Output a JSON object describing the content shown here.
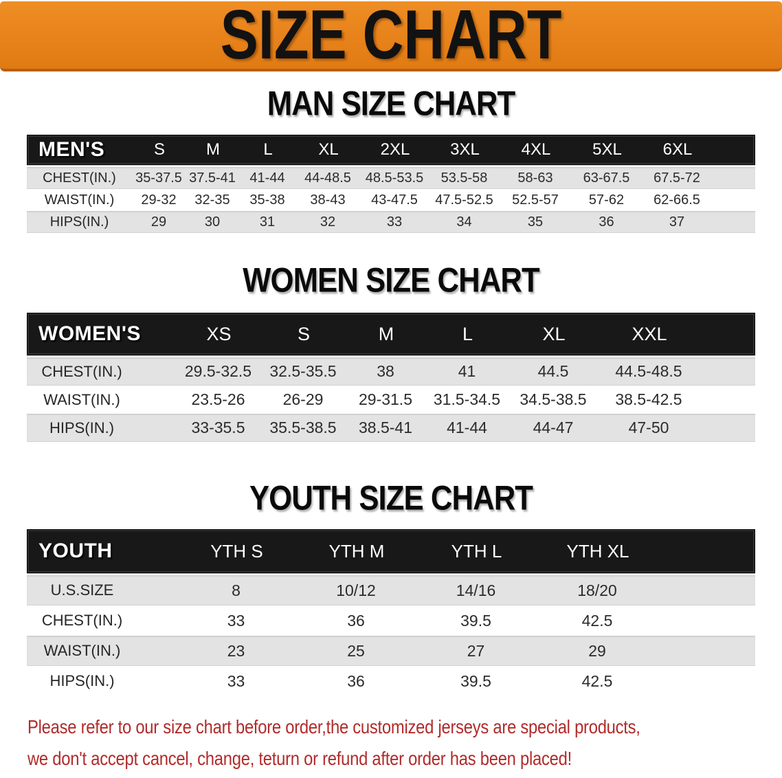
{
  "banner": {
    "title": "SIZE CHART",
    "background_color": "#E8821A",
    "text_color": "#121212"
  },
  "sections": [
    {
      "title": "MAN SIZE CHART",
      "group_label": "MEN'S",
      "columns": [
        "S",
        "M",
        "L",
        "XL",
        "2XL",
        "3XL",
        "4XL",
        "5XL",
        "6XL"
      ],
      "rows": [
        {
          "label": "CHEST(IN.)",
          "values": [
            "35-37.5",
            "37.5-41",
            "41-44",
            "44-48.5",
            "48.5-53.5",
            "53.5-58",
            "58-63",
            "63-67.5",
            "67.5-72"
          ]
        },
        {
          "label": "WAIST(IN.)",
          "values": [
            "29-32",
            "32-35",
            "35-38",
            "38-43",
            "43-47.5",
            "47.5-52.5",
            "52.5-57",
            "57-62",
            "62-66.5"
          ]
        },
        {
          "label": "HIPS(IN.)",
          "values": [
            "29",
            "30",
            "31",
            "32",
            "33",
            "34",
            "35",
            "36",
            "37"
          ]
        }
      ]
    },
    {
      "title": "WOMEN SIZE CHART",
      "group_label": "WOMEN'S",
      "columns": [
        "XS",
        "S",
        "M",
        "L",
        "XL",
        "XXL"
      ],
      "rows": [
        {
          "label": "CHEST(IN.)",
          "values": [
            "29.5-32.5",
            "32.5-35.5",
            "38",
            "41",
            "44.5",
            "44.5-48.5"
          ]
        },
        {
          "label": "WAIST(IN.)",
          "values": [
            "23.5-26",
            "26-29",
            "29-31.5",
            "31.5-34.5",
            "34.5-38.5",
            "38.5-42.5"
          ]
        },
        {
          "label": "HIPS(IN.)",
          "values": [
            "33-35.5",
            "35.5-38.5",
            "38.5-41",
            "41-44",
            "44-47",
            "47-50"
          ]
        }
      ]
    },
    {
      "title": "YOUTH SIZE CHART",
      "group_label": "YOUTH",
      "columns": [
        "YTH S",
        "YTH M",
        "YTH L",
        "YTH XL"
      ],
      "rows": [
        {
          "label": "U.S.SIZE",
          "values": [
            "8",
            "10/12",
            "14/16",
            "18/20"
          ]
        },
        {
          "label": "CHEST(IN.)",
          "values": [
            "33",
            "36",
            "39.5",
            "42.5"
          ]
        },
        {
          "label": "WAIST(IN.)",
          "values": [
            "23",
            "25",
            "27",
            "29"
          ]
        },
        {
          "label": "HIPS(IN.)",
          "values": [
            "33",
            "36",
            "39.5",
            "42.5"
          ]
        }
      ]
    }
  ],
  "table_colors": {
    "header_bar": "#181818",
    "header_text": "#FFFFFF",
    "stripe_gray": "#E3E3E3",
    "stripe_white": "#FFFFFF"
  },
  "footer": {
    "line1": "Please refer to our size chart before order,the customized jerseys are special products,",
    "line2": "we don't accept cancel, change, teturn or refund after order has been placed!",
    "text_color": "#B12B2B"
  }
}
